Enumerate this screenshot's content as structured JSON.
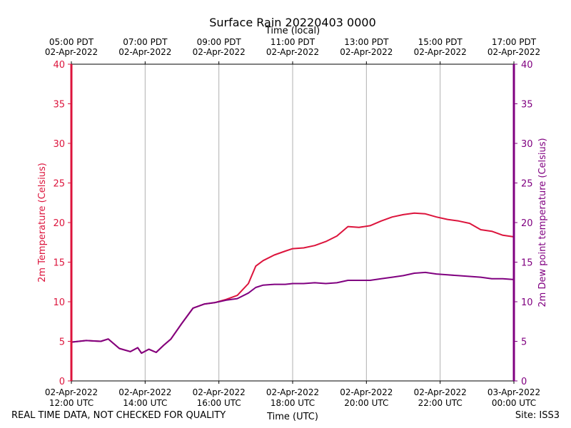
{
  "chart_data": {
    "type": "line",
    "title": "Surface Rain 20220403 0000",
    "top_axis_label": "Time (local)",
    "xlabel": "Time (UTC)",
    "ylabel_left": "2m Temperature (Celsius)",
    "ylabel_right": "2m Dew point temperature (Celsius)",
    "ylim": [
      0,
      40
    ],
    "yticks": [
      0,
      5,
      10,
      15,
      20,
      25,
      30,
      35,
      40
    ],
    "xlim": [
      "2022-04-02 12:00 UTC",
      "2022-04-03 00:00 UTC"
    ],
    "bottom_ticks": [
      {
        "date": "02-Apr-2022",
        "time": "12:00 UTC"
      },
      {
        "date": "02-Apr-2022",
        "time": "14:00 UTC"
      },
      {
        "date": "02-Apr-2022",
        "time": "16:00 UTC"
      },
      {
        "date": "02-Apr-2022",
        "time": "18:00 UTC"
      },
      {
        "date": "02-Apr-2022",
        "time": "20:00 UTC"
      },
      {
        "date": "02-Apr-2022",
        "time": "22:00 UTC"
      },
      {
        "date": "03-Apr-2022",
        "time": "00:00 UTC"
      }
    ],
    "top_ticks": [
      {
        "time": "05:00 PDT",
        "date": "02-Apr-2022"
      },
      {
        "time": "07:00 PDT",
        "date": "02-Apr-2022"
      },
      {
        "time": "09:00 PDT",
        "date": "02-Apr-2022"
      },
      {
        "time": "11:00 PDT",
        "date": "02-Apr-2022"
      },
      {
        "time": "13:00 PDT",
        "date": "02-Apr-2022"
      },
      {
        "time": "15:00 PDT",
        "date": "02-Apr-2022"
      },
      {
        "time": "17:00 PDT",
        "date": "02-Apr-2022"
      }
    ],
    "grid": "vertical",
    "colors": {
      "temperature": "#dc143c",
      "dewpoint": "#800080",
      "grid": "#b0b0b0"
    },
    "series": [
      {
        "key": "temperature",
        "x_hours_utc": [
          12.0,
          12.4,
          12.8,
          13.0,
          13.3,
          13.6,
          13.8,
          13.9,
          14.1,
          14.3,
          14.5,
          14.7,
          15.0,
          15.3,
          15.6,
          15.9,
          16.2,
          16.5,
          16.8,
          17.0,
          17.2,
          17.5,
          17.8,
          18.0,
          18.3,
          18.6,
          18.9,
          19.2,
          19.5,
          19.8,
          20.1,
          20.4,
          20.7,
          21.0,
          21.3,
          21.6,
          21.9,
          22.2,
          22.5,
          22.8,
          23.1,
          23.4,
          23.7,
          24.0
        ],
        "values": [
          4.9,
          5.1,
          5.0,
          5.3,
          4.1,
          3.7,
          4.2,
          3.5,
          4.0,
          3.6,
          4.5,
          5.3,
          7.3,
          9.2,
          9.7,
          9.9,
          10.3,
          10.8,
          12.3,
          14.5,
          15.2,
          15.9,
          16.4,
          16.7,
          16.8,
          17.1,
          17.6,
          18.3,
          19.5,
          19.4,
          19.6,
          20.2,
          20.7,
          21.0,
          21.2,
          21.1,
          20.7,
          20.4,
          20.2,
          19.9,
          19.1,
          18.9,
          18.4,
          18.2
        ]
      },
      {
        "key": "dewpoint",
        "x_hours_utc": [
          12.0,
          12.4,
          12.8,
          13.0,
          13.3,
          13.6,
          13.8,
          13.9,
          14.1,
          14.3,
          14.5,
          14.7,
          15.0,
          15.3,
          15.6,
          15.9,
          16.2,
          16.5,
          16.8,
          17.0,
          17.2,
          17.5,
          17.8,
          18.0,
          18.3,
          18.6,
          18.9,
          19.2,
          19.5,
          19.8,
          20.1,
          20.4,
          20.7,
          21.0,
          21.3,
          21.6,
          21.9,
          22.2,
          22.5,
          22.8,
          23.1,
          23.4,
          23.7,
          24.0
        ],
        "values": [
          4.9,
          5.1,
          5.0,
          5.3,
          4.1,
          3.7,
          4.2,
          3.5,
          4.0,
          3.6,
          4.5,
          5.3,
          7.3,
          9.2,
          9.7,
          9.9,
          10.2,
          10.4,
          11.1,
          11.8,
          12.1,
          12.2,
          12.2,
          12.3,
          12.3,
          12.4,
          12.3,
          12.4,
          12.7,
          12.7,
          12.7,
          12.9,
          13.1,
          13.3,
          13.6,
          13.7,
          13.5,
          13.4,
          13.3,
          13.2,
          13.1,
          12.9,
          12.9,
          12.8
        ]
      }
    ]
  },
  "footer": {
    "quality_note": "REAL TIME DATA, NOT CHECKED FOR QUALITY",
    "site": "Site: ISS3"
  }
}
